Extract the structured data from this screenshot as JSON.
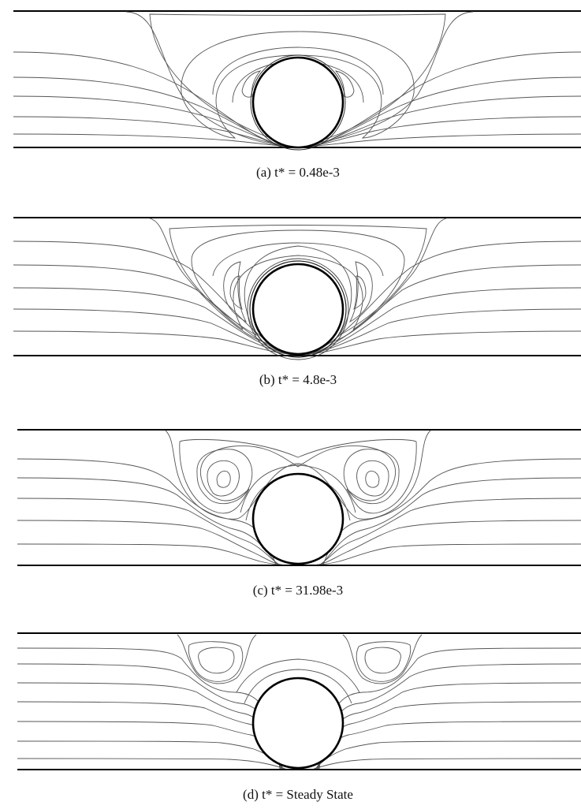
{
  "panels": [
    {
      "id": "a",
      "caption": "(a) t* = 0.48e-3"
    },
    {
      "id": "b",
      "caption": "(b) t* = 4.8e-3"
    },
    {
      "id": "c",
      "caption": "(c) t* = 31.98e-3"
    },
    {
      "id": "d",
      "caption": "(d) t* = Steady State"
    }
  ],
  "colors": {
    "wall": "#000000",
    "streamline": "#555555",
    "cylinder": "#000000"
  }
}
